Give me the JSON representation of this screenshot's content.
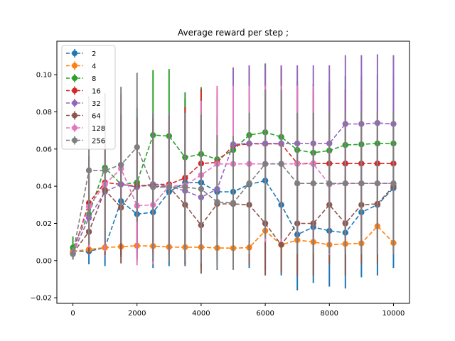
{
  "chart_data": {
    "type": "line",
    "title": "Average reward per step ;",
    "xlabel": "",
    "ylabel": "",
    "xlim": [
      -500,
      10500
    ],
    "ylim": [
      -0.023,
      0.118
    ],
    "x_ticks": [
      0,
      2000,
      4000,
      6000,
      8000,
      10000
    ],
    "x_tick_labels": [
      "0",
      "2000",
      "4000",
      "6000",
      "8000",
      "10000"
    ],
    "y_ticks": [
      -0.02,
      0.0,
      0.02,
      0.04,
      0.06,
      0.08,
      0.1
    ],
    "y_tick_labels": [
      "−0.02",
      "0.00",
      "0.02",
      "0.04",
      "0.06",
      "0.08",
      "0.10"
    ],
    "grid": false,
    "legend_position": "top-left",
    "marker": "circle",
    "line_style": "dashed",
    "error_bars": true,
    "x": [
      0,
      500,
      1000,
      1500,
      2000,
      2500,
      3000,
      3500,
      4000,
      4500,
      5000,
      5500,
      6000,
      6500,
      7000,
      7500,
      8000,
      8500,
      9000,
      9500,
      10000
    ],
    "series": [
      {
        "name": "2",
        "color": "#1f77b4",
        "values": [
          0.005,
          0.005,
          0.007,
          0.032,
          0.025,
          0.026,
          0.037,
          0.042,
          0.042,
          0.037,
          0.037,
          0.041,
          0.043,
          0.03,
          0.014,
          0.018,
          0.016,
          0.015,
          0.026,
          0.03,
          0.039
        ],
        "err": [
          0.003,
          0.007,
          0.01,
          0.03,
          0.025,
          0.03,
          0.04,
          0.045,
          0.045,
          0.042,
          0.04,
          0.045,
          0.048,
          0.038,
          0.03,
          0.03,
          0.03,
          0.03,
          0.035,
          0.038,
          0.043
        ]
      },
      {
        "name": "4",
        "color": "#ff7f0e",
        "values": [
          0.005,
          0.006,
          0.007,
          0.0075,
          0.008,
          0.0078,
          0.0073,
          0.0072,
          0.0072,
          0.0068,
          0.0067,
          0.007,
          0.016,
          0.0085,
          0.011,
          0.01,
          0.0085,
          0.009,
          0.0093,
          0.0185,
          0.0095
        ],
        "err": [
          0.002,
          0.002,
          0.003,
          0.004,
          0.004,
          0.004,
          0.004,
          0.004,
          0.004,
          0.004,
          0.004,
          0.004,
          0.006,
          0.004,
          0.004,
          0.004,
          0.004,
          0.004,
          0.004,
          0.005,
          0.004
        ]
      },
      {
        "name": "8",
        "color": "#2ca02c",
        "values": [
          0.007,
          0.025,
          0.05,
          0.041,
          0.042,
          0.0675,
          0.067,
          0.0555,
          0.0573,
          0.0545,
          0.0595,
          0.0675,
          0.069,
          0.0665,
          0.0595,
          0.058,
          0.0592,
          0.0622,
          0.0625,
          0.063,
          0.063
        ],
        "err": [
          0.006,
          0.02,
          0.04,
          0.038,
          0.04,
          0.035,
          0.036,
          0.035,
          0.036,
          0.035,
          0.036,
          0.037,
          0.037,
          0.037,
          0.037,
          0.037,
          0.037,
          0.037,
          0.037,
          0.037,
          0.037
        ]
      },
      {
        "name": "16",
        "color": "#d62728",
        "values": [
          0.004,
          0.031,
          0.042,
          0.041,
          0.04,
          0.041,
          0.041,
          0.0445,
          0.0522,
          0.0528,
          0.0618,
          0.0628,
          0.0628,
          0.0628,
          0.0522,
          0.0522,
          0.0522,
          0.0522,
          0.0522,
          0.0522,
          0.0522
        ],
        "err": [
          0.003,
          0.025,
          0.038,
          0.036,
          0.036,
          0.036,
          0.037,
          0.038,
          0.04,
          0.04,
          0.042,
          0.042,
          0.042,
          0.042,
          0.04,
          0.04,
          0.04,
          0.04,
          0.04,
          0.04,
          0.04
        ]
      },
      {
        "name": "32",
        "color": "#9467bd",
        "values": [
          0.004,
          0.023,
          0.037,
          0.041,
          0.0395,
          0.041,
          0.04,
          0.0375,
          0.034,
          0.0385,
          0.0625,
          0.063,
          0.063,
          0.063,
          0.063,
          0.063,
          0.063,
          0.0735,
          0.0735,
          0.074,
          0.0735
        ],
        "err": [
          0.003,
          0.02,
          0.035,
          0.038,
          0.038,
          0.038,
          0.038,
          0.038,
          0.038,
          0.038,
          0.041,
          0.042,
          0.042,
          0.042,
          0.042,
          0.042,
          0.042,
          0.037,
          0.037,
          0.037,
          0.037
        ]
      },
      {
        "name": "64",
        "color": "#8c564b",
        "values": [
          0.004,
          0.0155,
          0.038,
          0.0285,
          0.0405,
          0.04,
          0.0395,
          0.03,
          0.019,
          0.0305,
          0.0305,
          0.03,
          0.02,
          0.0085,
          0.02,
          0.02,
          0.03,
          0.02,
          0.03,
          0.0305,
          0.04
        ],
        "err": [
          0.003,
          0.012,
          0.035,
          0.03,
          0.036,
          0.036,
          0.036,
          0.032,
          0.026,
          0.032,
          0.032,
          0.032,
          0.028,
          0.015,
          0.028,
          0.028,
          0.032,
          0.028,
          0.032,
          0.032,
          0.036
        ]
      },
      {
        "name": "128",
        "color": "#e377c2",
        "values": [
          0.004,
          0.029,
          0.041,
          0.0495,
          0.0295,
          0.03,
          0.04,
          0.0405,
          0.046,
          0.052,
          0.052,
          0.052,
          0.052,
          0.052,
          0.052,
          0.052,
          0.041,
          0.0415,
          0.0415,
          0.0415,
          0.0415
        ],
        "err": [
          0.003,
          0.022,
          0.036,
          0.04,
          0.032,
          0.032,
          0.037,
          0.037,
          0.04,
          0.042,
          0.042,
          0.042,
          0.042,
          0.042,
          0.042,
          0.042,
          0.038,
          0.038,
          0.038,
          0.038,
          0.038
        ]
      },
      {
        "name": "256",
        "color": "#7f7f7f",
        "values": [
          0.0035,
          0.0485,
          0.0485,
          0.0515,
          0.061,
          0.0395,
          0.0395,
          0.0395,
          0.0385,
          0.0315,
          0.031,
          0.0415,
          0.052,
          0.052,
          0.0415,
          0.0415,
          0.0415,
          0.0415,
          0.0415,
          0.0415,
          0.0415
        ],
        "err": [
          0.003,
          0.04,
          0.04,
          0.042,
          0.04,
          0.04,
          0.04,
          0.04,
          0.04,
          0.036,
          0.036,
          0.038,
          0.04,
          0.04,
          0.038,
          0.038,
          0.038,
          0.038,
          0.038,
          0.038,
          0.038
        ]
      }
    ]
  }
}
